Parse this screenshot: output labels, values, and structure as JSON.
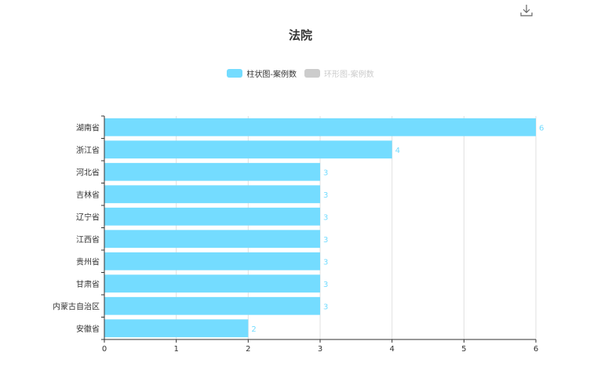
{
  "toolbox": {
    "icon": "download-icon"
  },
  "chart_data": {
    "type": "bar",
    "orientation": "horizontal",
    "title": "法院",
    "legend": [
      {
        "name": "柱状图-案例数",
        "color": "#74dcff",
        "active": true
      },
      {
        "name": "环形图-案例数",
        "color": "#cccccc",
        "active": false
      }
    ],
    "categories": [
      "湖南省",
      "浙江省",
      "河北省",
      "吉林省",
      "辽宁省",
      "江西省",
      "贵州省",
      "甘肃省",
      "内蒙古自治区",
      "安徽省"
    ],
    "values": [
      6,
      4,
      3,
      3,
      3,
      3,
      3,
      3,
      3,
      2
    ],
    "xlim": [
      0,
      6
    ],
    "xticks": [
      "0",
      "1",
      "2",
      "3",
      "4",
      "5",
      "6"
    ],
    "grid": true,
    "bar_color": "#74dcff",
    "label_color": "#74dcff"
  }
}
